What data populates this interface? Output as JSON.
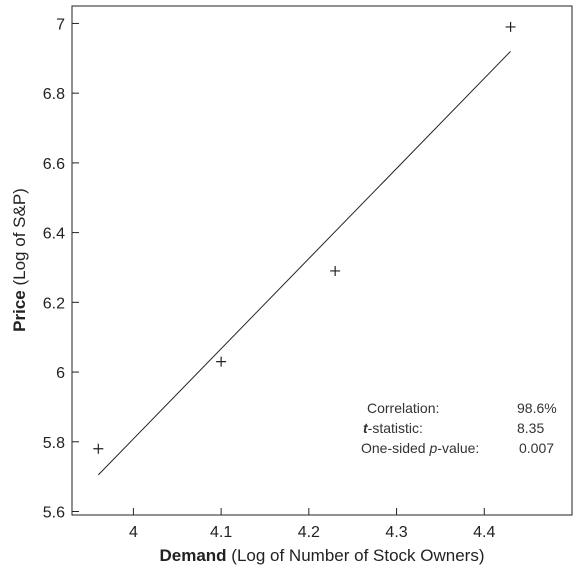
{
  "chart_data": {
    "type": "scatter",
    "xlabel_bold": "Demand",
    "xlabel_rest": " (Log of Number of Stock Owners)",
    "ylabel_bold": "Price",
    "ylabel_rest": " (Log of S&P)",
    "xlim": [
      3.93,
      4.5
    ],
    "ylim": [
      5.59,
      7.05
    ],
    "x_ticks": [
      4,
      4.1,
      4.2,
      4.3,
      4.4
    ],
    "x_tick_labels": [
      "4",
      "4.1",
      "4.2",
      "4.3",
      "4.4"
    ],
    "y_ticks": [
      5.6,
      5.8,
      6,
      6.2,
      6.4,
      6.6,
      6.8,
      7
    ],
    "y_tick_labels": [
      "5.6",
      "5.8",
      "6",
      "6.2",
      "6.4",
      "6.6",
      "6.8",
      "7"
    ],
    "points": [
      {
        "x": 3.96,
        "y": 5.78
      },
      {
        "x": 4.1,
        "y": 6.03
      },
      {
        "x": 4.23,
        "y": 6.29
      },
      {
        "x": 4.43,
        "y": 6.99
      }
    ],
    "fit_line": {
      "x": [
        3.96,
        4.43
      ],
      "y": [
        5.705,
        6.92
      ]
    },
    "stats": {
      "correlation_label": "Correlation:",
      "correlation_value": "98.6%",
      "t_label_emph": "t",
      "t_label_rest": "-statistic:",
      "t_value": "8.35",
      "p_label_pre": "One-sided ",
      "p_label_emph": "p",
      "p_label_post": "-value:",
      "p_value": "0.007"
    },
    "colors": {
      "axis": "#222222",
      "marker": "#222222",
      "line": "#222222"
    },
    "grid": false,
    "legend": "none"
  }
}
